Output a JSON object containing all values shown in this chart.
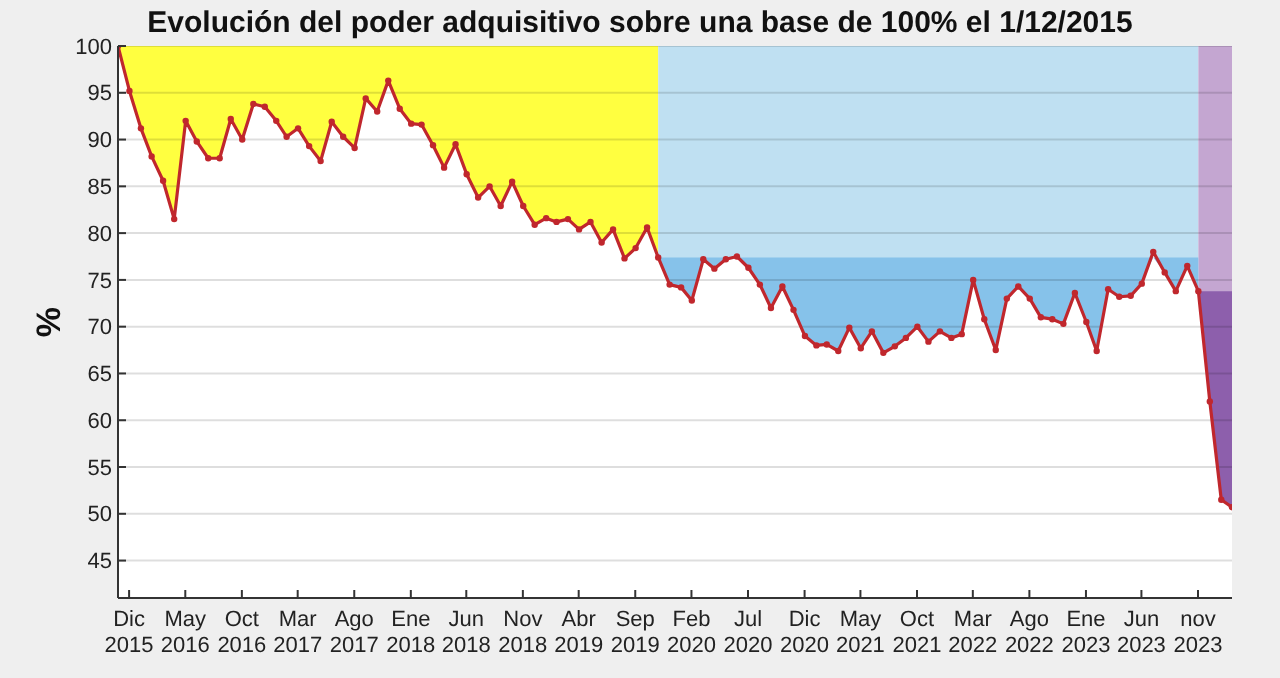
{
  "chart_data": {
    "type": "line",
    "title": "Evolución del poder adquisitivo sobre una base de 100% el 1/12/2015",
    "ylabel": "%",
    "x": [
      "2015-12",
      "2016-01",
      "2016-02",
      "2016-03",
      "2016-04",
      "2016-05",
      "2016-06",
      "2016-07",
      "2016-08",
      "2016-09",
      "2016-10",
      "2016-11",
      "2016-12",
      "2017-01",
      "2017-02",
      "2017-03",
      "2017-04",
      "2017-05",
      "2017-06",
      "2017-07",
      "2017-08",
      "2017-09",
      "2017-10",
      "2017-11",
      "2017-12",
      "2018-01",
      "2018-02",
      "2018-03",
      "2018-04",
      "2018-05",
      "2018-06",
      "2018-07",
      "2018-08",
      "2018-09",
      "2018-10",
      "2018-11",
      "2018-12",
      "2019-01",
      "2019-02",
      "2019-03",
      "2019-04",
      "2019-05",
      "2019-06",
      "2019-07",
      "2019-08",
      "2019-09",
      "2019-10",
      "2019-11",
      "2019-12",
      "2020-01",
      "2020-02",
      "2020-03",
      "2020-04",
      "2020-05",
      "2020-06",
      "2020-07",
      "2020-08",
      "2020-09",
      "2020-10",
      "2020-11",
      "2020-12",
      "2021-01",
      "2021-02",
      "2021-03",
      "2021-04",
      "2021-05",
      "2021-06",
      "2021-07",
      "2021-08",
      "2021-09",
      "2021-10",
      "2021-11",
      "2021-12",
      "2022-01",
      "2022-02",
      "2022-03",
      "2022-04",
      "2022-05",
      "2022-06",
      "2022-07",
      "2022-08",
      "2022-09",
      "2022-10",
      "2022-11",
      "2022-12",
      "2023-01",
      "2023-02",
      "2023-03",
      "2023-04",
      "2023-05",
      "2023-06",
      "2023-07",
      "2023-08",
      "2023-09",
      "2023-10",
      "2023-11",
      "2023-12",
      "2024-01",
      "2024-02",
      "2024-03"
    ],
    "xlim": [
      "2015-12",
      "2024-03"
    ],
    "xticks": [
      {
        "value": "2015-12-31",
        "label": "Dic 2015"
      },
      {
        "value": "2016-05-31",
        "label": "May 2016"
      },
      {
        "value": "2016-10-31",
        "label": "Oct 2016"
      },
      {
        "value": "2017-03-31",
        "label": "Mar 2017"
      },
      {
        "value": "2017-08-31",
        "label": "Ago 2017"
      },
      {
        "value": "2018-01-31",
        "label": "Ene 2018"
      },
      {
        "value": "2018-06-30",
        "label": "Jun 2018"
      },
      {
        "value": "2018-11-30",
        "label": "Nov 2018"
      },
      {
        "value": "2019-04-30",
        "label": "Abr 2019"
      },
      {
        "value": "2019-09-30",
        "label": "Sep 2019"
      },
      {
        "value": "2020-02-29",
        "label": "Feb 2020"
      },
      {
        "value": "2020-07-31",
        "label": "Jul 2020"
      },
      {
        "value": "2020-12-31",
        "label": "Dic 2020"
      },
      {
        "value": "2021-05-31",
        "label": "May 2021"
      },
      {
        "value": "2021-10-31",
        "label": "Oct 2021"
      },
      {
        "value": "2022-03-31",
        "label": "Mar 2022"
      },
      {
        "value": "2022-08-31",
        "label": "Ago 2022"
      },
      {
        "value": "2023-01-31",
        "label": "Ene 2023"
      },
      {
        "value": "2023-06-30",
        "label": "Jun 2023"
      },
      {
        "value": "2023-11-30",
        "label": "nov 2023"
      }
    ],
    "ylim": [
      41,
      100
    ],
    "yticks": [
      45,
      50,
      55,
      60,
      65,
      70,
      75,
      80,
      85,
      90,
      95,
      100
    ],
    "grid": "y",
    "line_style": "solid",
    "bands": [
      {
        "axis": "x",
        "from": "2015-12",
        "to": "2019-12",
        "color": "#ffff40"
      },
      {
        "axis": "x",
        "from": "2019-12",
        "to": "2023-12",
        "color": "#bfe0f2"
      },
      {
        "axis": "x",
        "from": "2023-12",
        "to": "2024-03",
        "color": "#c4a6d1"
      }
    ],
    "series": [
      {
        "type": "area",
        "color": "#86c2ea",
        "x": [
          "2019-12",
          "2020-01",
          "2020-02",
          "2020-03",
          "2020-04",
          "2020-05",
          "2020-06",
          "2020-07",
          "2020-08",
          "2020-09",
          "2020-10",
          "2020-11",
          "2020-12",
          "2021-01",
          "2021-02",
          "2021-03",
          "2021-04",
          "2021-05",
          "2021-06",
          "2021-07",
          "2021-08",
          "2021-09",
          "2021-10",
          "2021-11",
          "2021-12",
          "2022-01",
          "2022-02",
          "2022-03",
          "2022-04",
          "2022-05",
          "2022-06",
          "2022-07",
          "2022-08",
          "2022-09",
          "2022-10",
          "2022-11",
          "2022-12",
          "2023-01",
          "2023-02",
          "2023-03",
          "2023-04",
          "2023-05",
          "2023-06",
          "2023-07",
          "2023-08",
          "2023-09",
          "2023-10",
          "2023-11",
          "2023-12"
        ],
        "values": [
          77.4,
          77.4,
          77.4,
          77.4,
          77.4,
          77.4,
          77.4,
          77.4,
          77.4,
          77.4,
          77.4,
          77.4,
          77.4,
          77.4,
          77.4,
          77.4,
          77.4,
          77.4,
          77.4,
          77.4,
          77.4,
          77.4,
          77.4,
          77.4,
          77.4,
          77.4,
          77.4,
          77.4,
          77.4,
          77.4,
          77.4,
          77.4,
          77.4,
          77.4,
          77.4,
          77.4,
          77.4,
          77.4,
          77.4,
          77.4,
          77.4,
          77.4,
          77.4,
          77.4,
          77.4,
          77.4,
          77.4,
          77.4,
          77.4
        ]
      },
      {
        "type": "area",
        "color": "#8d5fac",
        "x": [
          "2023-12",
          "2024-01",
          "2024-02",
          "2024-03"
        ],
        "values": [
          73.8,
          73.8,
          73.8,
          73.8
        ]
      },
      {
        "color": "#c0272d",
        "marker": "circle",
        "values": [
          100,
          95.2,
          91.2,
          88.2,
          85.6,
          81.5,
          92.0,
          89.8,
          88.0,
          88.0,
          92.2,
          90.0,
          93.8,
          93.5,
          92.0,
          90.3,
          91.2,
          89.3,
          87.7,
          91.9,
          90.3,
          89.1,
          94.4,
          93.0,
          96.3,
          93.3,
          91.7,
          91.6,
          89.4,
          87.0,
          89.5,
          86.3,
          83.8,
          85.0,
          82.9,
          85.5,
          82.9,
          80.9,
          81.6,
          81.2,
          81.5,
          80.4,
          81.2,
          79.0,
          80.4,
          77.3,
          78.4,
          80.6,
          77.4,
          74.5,
          74.2,
          72.8,
          77.2,
          76.2,
          77.2,
          77.5,
          76.3,
          74.5,
          72.0,
          74.3,
          71.8,
          69.0,
          68.0,
          68.1,
          67.4,
          69.9,
          67.7,
          69.5,
          67.2,
          67.9,
          68.8,
          70.0,
          68.4,
          69.5,
          68.8,
          69.2,
          75.0,
          70.8,
          67.5,
          73.0,
          74.3,
          73.0,
          71.0,
          70.8,
          70.3,
          73.6,
          70.5,
          67.4,
          74.0,
          73.2,
          73.3,
          74.6,
          78.0,
          75.8,
          73.8,
          76.5,
          73.8,
          62.0,
          51.5,
          50.7
        ]
      }
    ]
  }
}
